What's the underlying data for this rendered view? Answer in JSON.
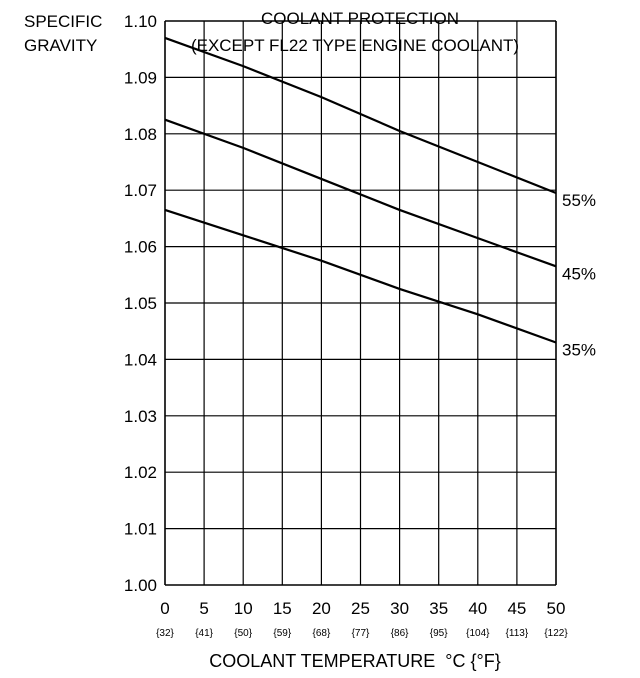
{
  "chart_data": {
    "type": "line",
    "title": "COOLANT PROTECTION",
    "subtitle": "(EXCEPT FL22 TYPE ENGINE COOLANT)",
    "ylabel_lines": [
      "SPECIFIC",
      "GRAVITY"
    ],
    "xlabel": "COOLANT TEMPERATURE  °C {°F}",
    "xlim": [
      0,
      50
    ],
    "ylim": [
      1.0,
      1.1
    ],
    "grid": true,
    "x_ticks": [
      0,
      5,
      10,
      15,
      20,
      25,
      30,
      35,
      40,
      45,
      50
    ],
    "x_tick_labels": [
      "0",
      "5",
      "10",
      "15",
      "20",
      "25",
      "30",
      "35",
      "40",
      "45",
      "50"
    ],
    "x_tick_sublabels": [
      "{32}",
      "{41}",
      "{50}",
      "{59}",
      "{68}",
      "{77}",
      "{86}",
      "{95}",
      "{104}",
      "{113}",
      "{122}"
    ],
    "y_ticks": [
      1.0,
      1.01,
      1.02,
      1.03,
      1.04,
      1.05,
      1.06,
      1.07,
      1.08,
      1.09,
      1.1
    ],
    "y_tick_labels": [
      "1.00",
      "1.01",
      "1.02",
      "1.03",
      "1.04",
      "1.05",
      "1.06",
      "1.07",
      "1.08",
      "1.09",
      "1.10"
    ],
    "x": [
      0,
      10,
      20,
      30,
      40,
      50
    ],
    "series": [
      {
        "name": "55%",
        "values": [
          1.097,
          1.092,
          1.0865,
          1.0805,
          1.075,
          1.0695
        ]
      },
      {
        "name": "45%",
        "values": [
          1.0825,
          1.0775,
          1.072,
          1.0665,
          1.0615,
          1.0565
        ]
      },
      {
        "name": "35%",
        "values": [
          1.0665,
          1.062,
          1.0575,
          1.0525,
          1.048,
          1.043
        ]
      }
    ]
  }
}
